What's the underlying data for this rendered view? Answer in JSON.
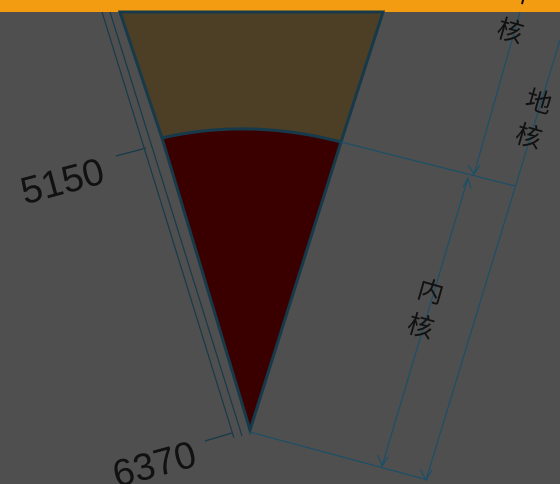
{
  "colors": {
    "background": "#4f4f4f",
    "top_band": "#f39c12",
    "outer_core": "#4d3e26",
    "inner_core": "#3a0000",
    "outline": "#163a4a",
    "dimension_line": "#1b4f66",
    "text": "#111111"
  },
  "depth_labels": {
    "outer_inner_boundary": "5150",
    "center": "6370"
  },
  "layer_labels": {
    "outer_core": "外核",
    "inner_core": "内核",
    "core": "地核"
  }
}
